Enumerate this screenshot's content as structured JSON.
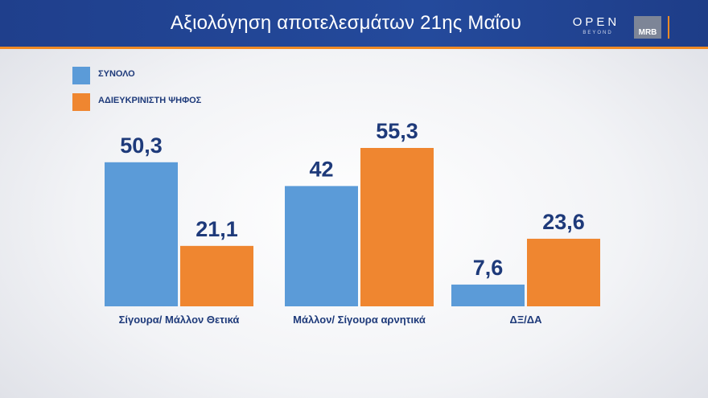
{
  "header": {
    "title": "Αξιολόγηση αποτελεσμάτων 21ης Μαΐου",
    "logo_open": "OPEN",
    "logo_beyond": "BEYOND",
    "logo_mrb": "MRB"
  },
  "colors": {
    "series_1": "#5b9bd8",
    "series_2": "#ef8630",
    "text": "#1e3a7a",
    "header_bg": "#23479a",
    "accent": "#f08a24"
  },
  "chart_data": {
    "type": "bar",
    "title": "Αξιολόγηση αποτελεσμάτων 21ης Μαΐου",
    "categories": [
      "Σίγουρα/ Μάλλον Θετικά",
      "Μάλλον/ Σίγουρα αρνητικά",
      "ΔΞ/ΔΑ"
    ],
    "series": [
      {
        "name": "ΣΥΝΟΛΟ",
        "values": [
          50.3,
          42,
          7.6
        ],
        "labels": [
          "50,3",
          "42",
          "7,6"
        ]
      },
      {
        "name": "ΑΔΙΕΥΚΡΙΝΙΣΤΗ ΨΗΦΟΣ",
        "values": [
          21.1,
          55.3,
          23.6
        ],
        "labels": [
          "21,1",
          "55,3",
          "23,6"
        ]
      }
    ],
    "ylim": [
      0,
      60
    ],
    "grid": false,
    "legend_position": "top-left"
  }
}
